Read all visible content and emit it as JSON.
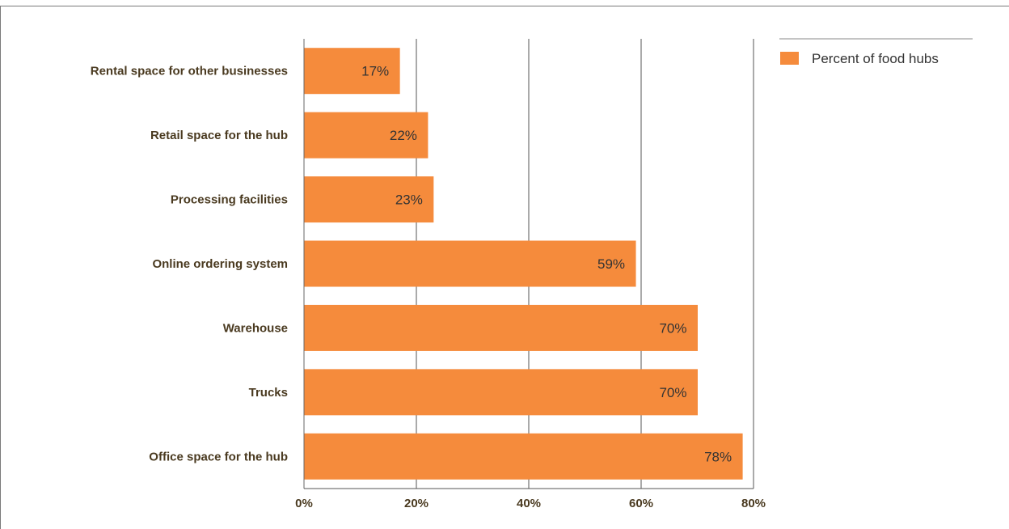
{
  "chart_data": {
    "type": "bar",
    "orientation": "horizontal",
    "categories": [
      "Rental space for other businesses",
      "Retail space for the hub",
      "Processing facilities",
      "Online ordering system",
      "Warehouse",
      "Trucks",
      "Office space for the hub"
    ],
    "series": [
      {
        "name": "Percent of food hubs",
        "values": [
          17,
          22,
          23,
          59,
          70,
          70,
          78
        ],
        "data_labels": [
          "17%",
          "22%",
          "23%",
          "59%",
          "70%",
          "70%",
          "78%"
        ],
        "color": "#f58b3c"
      }
    ],
    "xlim": [
      0,
      80
    ],
    "x_ticks": [
      0,
      20,
      40,
      60,
      80
    ],
    "x_tick_labels": [
      "0%",
      "20%",
      "40%",
      "60%",
      "80%"
    ],
    "grid": "vertical",
    "legend_position": "top-right",
    "title": "",
    "xlabel": "",
    "ylabel": ""
  }
}
